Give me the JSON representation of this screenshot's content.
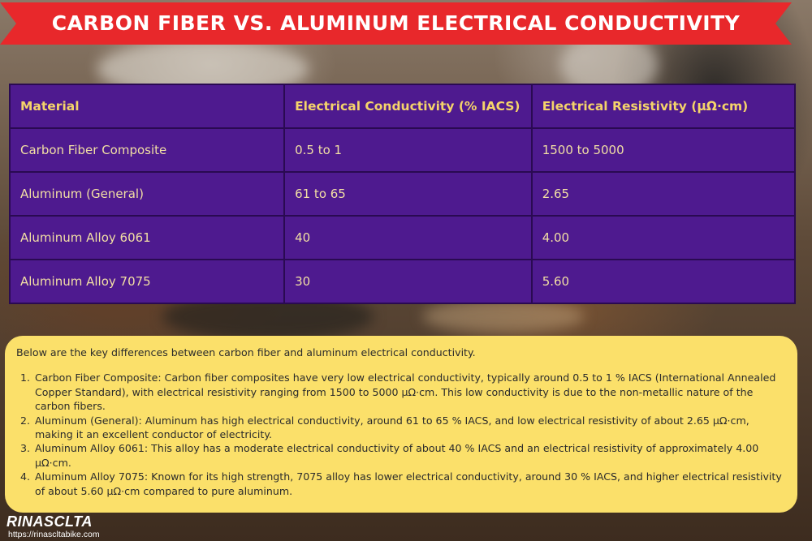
{
  "banner": {
    "title": "CARBON FIBER VS. ALUMINUM ELECTRICAL CONDUCTIVITY",
    "color": "#e8282b"
  },
  "table": {
    "headers": [
      "Material",
      "Electrical Conductivity (% IACS)",
      "Electrical Resistivity (μΩ·cm)"
    ],
    "rows": [
      [
        "Carbon Fiber Composite",
        "0.5 to 1",
        "1500 to 5000"
      ],
      [
        "Aluminum (General)",
        "61 to 65",
        "2.65"
      ],
      [
        "Aluminum Alloy 6061",
        "40",
        "4.00"
      ],
      [
        "Aluminum Alloy 7075",
        "30",
        "5.60"
      ]
    ],
    "background_color": "#4e1a8f",
    "header_text_color": "#f5d46a"
  },
  "notes": {
    "intro": "Below are the key differences between carbon fiber and aluminum electrical conductivity.",
    "items": [
      "Carbon Fiber Composite: Carbon fiber composites have very low electrical conductivity, typically around 0.5 to 1 % IACS (International Annealed Copper Standard), with electrical resistivity ranging from 1500 to 5000 μΩ·cm. This low conductivity is due to the non-metallic nature of the carbon fibers.",
      "Aluminum (General): Aluminum has high electrical conductivity, around 61 to 65 % IACS, and low electrical resistivity of about 2.65 μΩ·cm, making it an excellent conductor of electricity.",
      "Aluminum Alloy 6061: This alloy has a moderate electrical conductivity of about 40 % IACS and an electrical resistivity of approximately 4.00 μΩ·cm.",
      "Aluminum Alloy 7075: Known for its high strength, 7075 alloy has lower electrical conductivity, around 30 % IACS, and higher electrical resistivity of about 5.60 μΩ·cm compared to pure aluminum."
    ],
    "background_color": "#fbe06a"
  },
  "logo": {
    "brand": "RINASCLTA",
    "url": "https://rinascltabike.com"
  }
}
